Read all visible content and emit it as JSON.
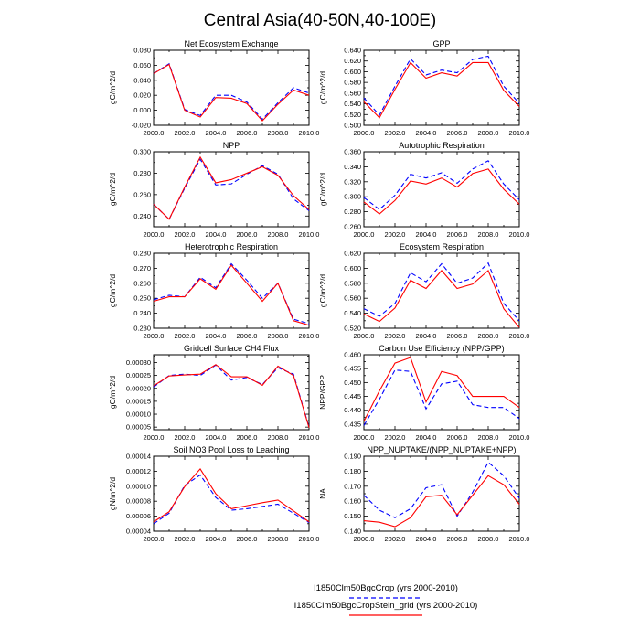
{
  "figure": {
    "title": "Central Asia(40-50N,40-100E)",
    "legend": [
      {
        "label": "I1850Clm50BgcCrop (yrs 2000-2010)",
        "color": "#0000ff",
        "dash": "dashed"
      },
      {
        "label": "I1850Clm50BgcCropStein_grid (yrs 2000-2010)",
        "color": "#ff0000",
        "dash": "solid"
      }
    ]
  },
  "chart_data": [
    {
      "type": "line",
      "title": "Net Ecosystem Exchange",
      "ylabel": "gC/m^2/d",
      "xlim": [
        2000,
        2010
      ],
      "ylim": [
        -0.02,
        0.08
      ],
      "xticks": [
        "2000.0",
        "2002.0",
        "2004.0",
        "2006.0",
        "2008.0",
        "2010.0"
      ],
      "yticks": [
        "-0.020",
        "0.000",
        "0.020",
        "0.040",
        "0.060",
        "0.080"
      ],
      "x": [
        2000,
        2001,
        2002,
        2003,
        2004,
        2005,
        2006,
        2007,
        2008,
        2009,
        2010
      ],
      "series": [
        {
          "values": [
            0.049,
            0.062,
            0.001,
            -0.007,
            0.02,
            0.02,
            0.011,
            -0.012,
            0.01,
            0.03,
            0.023
          ],
          "color": "#0000ff",
          "dash": "dashed"
        },
        {
          "values": [
            0.049,
            0.061,
            0.0,
            -0.009,
            0.017,
            0.016,
            0.009,
            -0.014,
            0.008,
            0.027,
            0.02
          ],
          "color": "#ff0000",
          "dash": "solid"
        }
      ]
    },
    {
      "type": "line",
      "title": "GPP",
      "ylabel": "gC/m^2/d",
      "xlim": [
        2000,
        2010
      ],
      "ylim": [
        0.5,
        0.64
      ],
      "xticks": [
        "2000.0",
        "2002.0",
        "2004.0",
        "2006.0",
        "2008.0",
        "2010.0"
      ],
      "yticks": [
        "0.500",
        "0.520",
        "0.540",
        "0.560",
        "0.580",
        "0.600",
        "0.620",
        "0.640"
      ],
      "x": [
        2000,
        2001,
        2002,
        2003,
        2004,
        2005,
        2006,
        2007,
        2008,
        2009,
        2010
      ],
      "series": [
        {
          "values": [
            0.551,
            0.519,
            0.573,
            0.624,
            0.594,
            0.603,
            0.598,
            0.623,
            0.629,
            0.573,
            0.541
          ],
          "color": "#0000ff",
          "dash": "dashed"
        },
        {
          "values": [
            0.544,
            0.514,
            0.567,
            0.617,
            0.588,
            0.598,
            0.592,
            0.617,
            0.617,
            0.565,
            0.535
          ],
          "color": "#ff0000",
          "dash": "solid"
        }
      ]
    },
    {
      "type": "line",
      "title": "NPP",
      "ylabel": "gC/m^2/d",
      "xlim": [
        2000,
        2010
      ],
      "ylim": [
        0.23,
        0.3
      ],
      "xticks": [
        "2000.0",
        "2002.0",
        "2004.0",
        "2006.0",
        "2008.0",
        "2010.0"
      ],
      "yticks": [
        "0.240",
        "0.260",
        "0.280",
        "0.300"
      ],
      "x": [
        2000,
        2001,
        2002,
        2003,
        2004,
        2005,
        2006,
        2007,
        2008,
        2009,
        2010
      ],
      "series": [
        {
          "values": [
            0.251,
            0.237,
            0.266,
            0.293,
            0.269,
            0.27,
            0.279,
            0.287,
            0.279,
            0.256,
            0.245
          ],
          "color": "#0000ff",
          "dash": "dashed"
        },
        {
          "values": [
            0.251,
            0.237,
            0.267,
            0.295,
            0.271,
            0.274,
            0.28,
            0.286,
            0.278,
            0.259,
            0.246
          ],
          "color": "#ff0000",
          "dash": "solid"
        }
      ]
    },
    {
      "type": "line",
      "title": "Autotrophic Respiration",
      "ylabel": "gC/m^2/d",
      "xlim": [
        2000,
        2010
      ],
      "ylim": [
        0.26,
        0.36
      ],
      "xticks": [
        "2000.0",
        "2002.0",
        "2004.0",
        "2006.0",
        "2008.0",
        "2010.0"
      ],
      "yticks": [
        "0.260",
        "0.280",
        "0.300",
        "0.320",
        "0.340",
        "0.360"
      ],
      "x": [
        2000,
        2001,
        2002,
        2003,
        2004,
        2005,
        2006,
        2007,
        2008,
        2009,
        2010
      ],
      "series": [
        {
          "values": [
            0.299,
            0.283,
            0.302,
            0.33,
            0.325,
            0.332,
            0.318,
            0.337,
            0.348,
            0.317,
            0.296
          ],
          "color": "#0000ff",
          "dash": "dashed"
        },
        {
          "values": [
            0.293,
            0.277,
            0.295,
            0.321,
            0.317,
            0.325,
            0.313,
            0.331,
            0.337,
            0.31,
            0.29
          ],
          "color": "#ff0000",
          "dash": "solid"
        }
      ]
    },
    {
      "type": "line",
      "title": "Heterotrophic Respiration",
      "ylabel": "gC/m^2/d",
      "xlim": [
        2000,
        2010
      ],
      "ylim": [
        0.23,
        0.28
      ],
      "xticks": [
        "2000.0",
        "2002.0",
        "2004.0",
        "2006.0",
        "2008.0",
        "2010.0"
      ],
      "yticks": [
        "0.230",
        "0.240",
        "0.250",
        "0.260",
        "0.270",
        "0.280"
      ],
      "x": [
        2000,
        2001,
        2002,
        2003,
        2004,
        2005,
        2006,
        2007,
        2008,
        2009,
        2010
      ],
      "series": [
        {
          "values": [
            0.249,
            0.252,
            0.251,
            0.264,
            0.257,
            0.273,
            0.262,
            0.25,
            0.26,
            0.236,
            0.233
          ],
          "color": "#0000ff",
          "dash": "dashed"
        },
        {
          "values": [
            0.248,
            0.251,
            0.251,
            0.263,
            0.256,
            0.272,
            0.26,
            0.248,
            0.26,
            0.235,
            0.232
          ],
          "color": "#ff0000",
          "dash": "solid"
        }
      ]
    },
    {
      "type": "line",
      "title": "Ecosystem Respiration",
      "ylabel": "gC/m^2/d",
      "xlim": [
        2000,
        2010
      ],
      "ylim": [
        0.52,
        0.62
      ],
      "xticks": [
        "2000.0",
        "2002.0",
        "2004.0",
        "2006.0",
        "2008.0",
        "2010.0"
      ],
      "yticks": [
        "0.520",
        "0.540",
        "0.560",
        "0.580",
        "0.600",
        "0.620"
      ],
      "x": [
        2000,
        2001,
        2002,
        2003,
        2004,
        2005,
        2006,
        2007,
        2008,
        2009,
        2010
      ],
      "series": [
        {
          "values": [
            0.546,
            0.536,
            0.553,
            0.594,
            0.582,
            0.606,
            0.58,
            0.587,
            0.607,
            0.553,
            0.53
          ],
          "color": "#0000ff",
          "dash": "dashed"
        },
        {
          "values": [
            0.539,
            0.529,
            0.547,
            0.584,
            0.573,
            0.597,
            0.573,
            0.579,
            0.597,
            0.546,
            0.521
          ],
          "color": "#ff0000",
          "dash": "solid"
        }
      ]
    },
    {
      "type": "line",
      "title": "Gridcell Surface CH4 Flux",
      "ylabel": "gC/m^2/d",
      "xlim": [
        2000,
        2010
      ],
      "ylim": [
        4e-05,
        0.00033
      ],
      "xticks": [
        "2000.0",
        "2002.0",
        "2004.0",
        "2006.0",
        "2008.0",
        "2010.0"
      ],
      "yticks": [
        "0.00005",
        "0.00010",
        "0.00015",
        "0.00020",
        "0.00025",
        "0.00030"
      ],
      "x": [
        2000,
        2001,
        2002,
        2003,
        2004,
        2005,
        2006,
        2007,
        2008,
        2009,
        2010
      ],
      "series": [
        {
          "values": [
            0.000205,
            0.00025,
            0.000255,
            0.00025,
            0.00029,
            0.000232,
            0.000242,
            0.000215,
            0.00028,
            0.000255,
            5e-05
          ],
          "color": "#0000ff",
          "dash": "dashed"
        },
        {
          "values": [
            0.00021,
            0.000248,
            0.000252,
            0.000255,
            0.000292,
            0.000245,
            0.000245,
            0.000212,
            0.000286,
            0.00025,
            4.8e-05
          ],
          "color": "#ff0000",
          "dash": "solid"
        }
      ]
    },
    {
      "type": "line",
      "title": "Carbon Use Efficiency (NPP/GPP)",
      "ylabel": "NPP/GPP",
      "xlim": [
        2000,
        2010
      ],
      "ylim": [
        0.433,
        0.46
      ],
      "xticks": [
        "2000.0",
        "2002.0",
        "2004.0",
        "2006.0",
        "2008.0",
        "2010.0"
      ],
      "yticks": [
        "0.435",
        "0.440",
        "0.445",
        "0.450",
        "0.455",
        "0.460"
      ],
      "x": [
        2000,
        2001,
        2002,
        2003,
        2004,
        2005,
        2006,
        2007,
        2008,
        2009,
        2010
      ],
      "series": [
        {
          "values": [
            0.4345,
            0.444,
            0.4545,
            0.454,
            0.4405,
            0.4495,
            0.4505,
            0.442,
            0.441,
            0.441,
            0.437
          ],
          "color": "#0000ff",
          "dash": "dashed"
        },
        {
          "values": [
            0.436,
            0.447,
            0.457,
            0.459,
            0.443,
            0.454,
            0.4525,
            0.445,
            0.445,
            0.445,
            0.441
          ],
          "color": "#ff0000",
          "dash": "solid"
        }
      ]
    },
    {
      "type": "line",
      "title": "Soil NO3 Pool Loss to Leaching",
      "ylabel": "gN/m^2/d",
      "xlim": [
        2000,
        2010
      ],
      "ylim": [
        4e-05,
        0.00014
      ],
      "xticks": [
        "2000.0",
        "2002.0",
        "2004.0",
        "2006.0",
        "2008.0",
        "2010.0"
      ],
      "yticks": [
        "0.00004",
        "0.00006",
        "0.00008",
        "0.00010",
        "0.00012",
        "0.00014"
      ],
      "x": [
        2000,
        2001,
        2002,
        2003,
        2004,
        2005,
        2006,
        2007,
        2008,
        2009,
        2010
      ],
      "series": [
        {
          "values": [
            5e-05,
            6.4e-05,
            0.000101,
            0.000115,
            8.5e-05,
            6.8e-05,
            7e-05,
            7.3e-05,
            7.6e-05,
            6.4e-05,
            5.15e-05
          ],
          "color": "#0000ff",
          "dash": "dashed"
        },
        {
          "values": [
            5.25e-05,
            6.6e-05,
            9.95e-05,
            0.000123,
            9e-05,
            7e-05,
            7.4e-05,
            7.8e-05,
            8.15e-05,
            6.7e-05,
            5.25e-05
          ],
          "color": "#ff0000",
          "dash": "solid"
        }
      ]
    },
    {
      "type": "line",
      "title": "NPP_NUPTAKE/(NPP_NUPTAKE+NPP)",
      "ylabel": "NA",
      "xlim": [
        2000,
        2010
      ],
      "ylim": [
        0.14,
        0.19
      ],
      "xticks": [
        "2000.0",
        "2002.0",
        "2004.0",
        "2006.0",
        "2008.0",
        "2010.0"
      ],
      "yticks": [
        "0.140",
        "0.150",
        "0.160",
        "0.170",
        "0.180",
        "0.190"
      ],
      "x": [
        2000,
        2001,
        2002,
        2003,
        2004,
        2005,
        2006,
        2007,
        2008,
        2009,
        2010
      ],
      "series": [
        {
          "values": [
            0.164,
            0.154,
            0.149,
            0.155,
            0.169,
            0.171,
            0.15,
            0.166,
            0.186,
            0.177,
            0.162
          ],
          "color": "#0000ff",
          "dash": "dashed"
        },
        {
          "values": [
            0.147,
            0.146,
            0.143,
            0.149,
            0.163,
            0.164,
            0.151,
            0.164,
            0.177,
            0.171,
            0.158
          ],
          "color": "#ff0000",
          "dash": "solid"
        }
      ]
    }
  ]
}
